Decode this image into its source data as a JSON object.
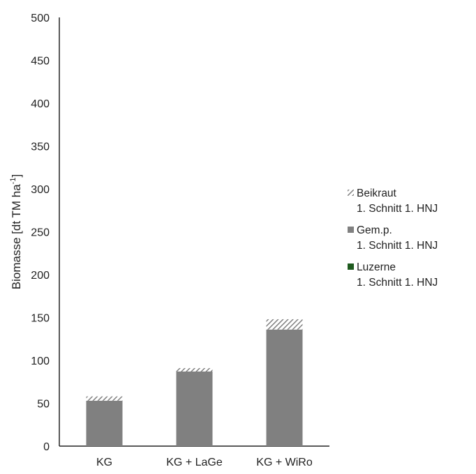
{
  "chart_data": {
    "type": "bar",
    "stacked": true,
    "categories": [
      "KG",
      "KG + LaGe",
      "KG + WiRo"
    ],
    "ylabel_main": "Biomasse [dt TM ha",
    "ylabel_sup": "-1",
    "ylabel_close": "]",
    "ylim": [
      0,
      500
    ],
    "yticks": [
      0,
      50,
      100,
      150,
      200,
      250,
      300,
      350,
      400,
      450,
      500
    ],
    "grid": false,
    "legend_position": "right",
    "series": [
      {
        "name": "Luzerne",
        "name_line2": "1. Schnitt 1. HNJ",
        "color": "#1e5a1e",
        "pattern": "solid",
        "values": [
          0,
          0,
          0
        ]
      },
      {
        "name": "Gem.p.",
        "name_line2": "1. Schnitt 1. HNJ",
        "color": "#808080",
        "pattern": "solid",
        "values": [
          53,
          87,
          136
        ]
      },
      {
        "name": "Beikraut",
        "name_line2": "1. Schnitt 1. HNJ",
        "color": "#808080",
        "pattern": "hatch",
        "values": [
          5,
          4,
          12
        ]
      }
    ]
  }
}
